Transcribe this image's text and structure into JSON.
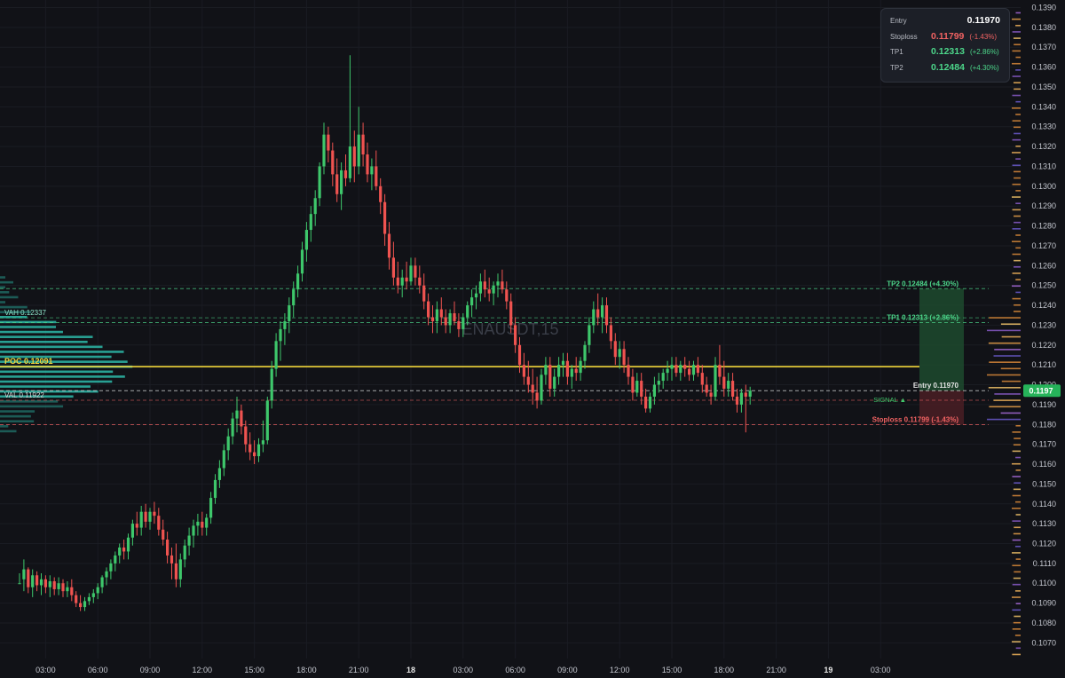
{
  "chart_data": {
    "type": "candlestick",
    "symbol_watermark": "ENAUSDT,15",
    "y_axis": {
      "range": [
        0.1062,
        0.1394
      ],
      "ticks": [
        "0.1070",
        "0.1080",
        "0.1090",
        "0.1100",
        "0.1110",
        "0.1120",
        "0.1130",
        "0.1140",
        "0.1150",
        "0.1160",
        "0.1170",
        "0.1180",
        "0.1190",
        "0.1200",
        "0.1210",
        "0.1220",
        "0.1230",
        "0.1240",
        "0.1250",
        "0.1260",
        "0.1270",
        "0.1280",
        "0.1290",
        "0.1300",
        "0.1310",
        "0.1320",
        "0.1330",
        "0.1340",
        "0.1350",
        "0.1360",
        "0.1370",
        "0.1380",
        "0.1390"
      ],
      "current_price_label": "0.1197"
    },
    "x_axis": {
      "ticks": [
        {
          "label": "03:00",
          "t": 6
        },
        {
          "label": "06:00",
          "t": 18
        },
        {
          "label": "09:00",
          "t": 30
        },
        {
          "label": "12:00",
          "t": 42
        },
        {
          "label": "15:00",
          "t": 54
        },
        {
          "label": "18:00",
          "t": 66
        },
        {
          "label": "21:00",
          "t": 78
        },
        {
          "label": "18",
          "t": 90,
          "bold": true
        },
        {
          "label": "03:00",
          "t": 102
        },
        {
          "label": "06:00",
          "t": 114
        },
        {
          "label": "09:00",
          "t": 126
        },
        {
          "label": "12:00",
          "t": 138
        },
        {
          "label": "15:00",
          "t": 150
        },
        {
          "label": "18:00",
          "t": 162
        },
        {
          "label": "21:00",
          "t": 174
        },
        {
          "label": "19",
          "t": 186,
          "bold": true
        },
        {
          "label": "03:00",
          "t": 198
        }
      ]
    },
    "ohlc": [
      [
        0.11,
        0.1105,
        0.11,
        0.11
      ],
      [
        0.1102,
        0.1112,
        0.1096,
        0.1107
      ],
      [
        0.1107,
        0.1108,
        0.1095,
        0.1098
      ],
      [
        0.1098,
        0.1107,
        0.1093,
        0.1104
      ],
      [
        0.1104,
        0.1106,
        0.1096,
        0.1099
      ],
      [
        0.1099,
        0.1105,
        0.1094,
        0.1102
      ],
      [
        0.1102,
        0.1104,
        0.1095,
        0.1098
      ],
      [
        0.1098,
        0.1104,
        0.1093,
        0.1101
      ],
      [
        0.1101,
        0.1103,
        0.1094,
        0.1097
      ],
      [
        0.1097,
        0.1103,
        0.1094,
        0.11
      ],
      [
        0.11,
        0.1102,
        0.1093,
        0.1096
      ],
      [
        0.1096,
        0.1101,
        0.1093,
        0.1098
      ],
      [
        0.1098,
        0.1102,
        0.1091,
        0.1094
      ],
      [
        0.1094,
        0.1096,
        0.1088,
        0.109
      ],
      [
        0.109,
        0.1094,
        0.1086,
        0.1088
      ],
      [
        0.1088,
        0.1093,
        0.1086,
        0.1091
      ],
      [
        0.1091,
        0.1095,
        0.1089,
        0.1093
      ],
      [
        0.1093,
        0.1097,
        0.109,
        0.1095
      ],
      [
        0.1095,
        0.11,
        0.1092,
        0.1098
      ],
      [
        0.1098,
        0.1104,
        0.1095,
        0.1103
      ],
      [
        0.1103,
        0.1108,
        0.1099,
        0.1106
      ],
      [
        0.1106,
        0.1112,
        0.1102,
        0.111
      ],
      [
        0.111,
        0.1116,
        0.1106,
        0.1114
      ],
      [
        0.1114,
        0.112,
        0.111,
        0.1118
      ],
      [
        0.1118,
        0.1122,
        0.1112,
        0.1116
      ],
      [
        0.1116,
        0.1125,
        0.1112,
        0.1123
      ],
      [
        0.1123,
        0.1132,
        0.1119,
        0.113
      ],
      [
        0.113,
        0.1136,
        0.1124,
        0.1128
      ],
      [
        0.1128,
        0.1139,
        0.1124,
        0.1136
      ],
      [
        0.1136,
        0.114,
        0.1128,
        0.1131
      ],
      [
        0.1131,
        0.1138,
        0.1127,
        0.1136
      ],
      [
        0.1136,
        0.1141,
        0.113,
        0.1134
      ],
      [
        0.1134,
        0.1138,
        0.1124,
        0.1127
      ],
      [
        0.1127,
        0.1132,
        0.1119,
        0.1122
      ],
      [
        0.1122,
        0.1126,
        0.111,
        0.1114
      ],
      [
        0.1114,
        0.1118,
        0.1102,
        0.111
      ],
      [
        0.111,
        0.112,
        0.1098,
        0.1102
      ],
      [
        0.1102,
        0.1115,
        0.1098,
        0.1112
      ],
      [
        0.1112,
        0.1122,
        0.1108,
        0.1119
      ],
      [
        0.1119,
        0.1128,
        0.1114,
        0.1124
      ],
      [
        0.1124,
        0.1132,
        0.1118,
        0.1129
      ],
      [
        0.1129,
        0.1135,
        0.1124,
        0.1131
      ],
      [
        0.1131,
        0.1136,
        0.1124,
        0.1128
      ],
      [
        0.1128,
        0.1135,
        0.1124,
        0.1133
      ],
      [
        0.1133,
        0.1146,
        0.113,
        0.1143
      ],
      [
        0.1143,
        0.1155,
        0.114,
        0.1152
      ],
      [
        0.1152,
        0.1162,
        0.1148,
        0.1158
      ],
      [
        0.1158,
        0.117,
        0.1154,
        0.1167
      ],
      [
        0.1167,
        0.1178,
        0.1162,
        0.1174
      ],
      [
        0.1174,
        0.1186,
        0.117,
        0.1183
      ],
      [
        0.1183,
        0.1194,
        0.1176,
        0.1187
      ],
      [
        0.1187,
        0.119,
        0.1175,
        0.1179
      ],
      [
        0.1179,
        0.1182,
        0.1166,
        0.117
      ],
      [
        0.117,
        0.1176,
        0.1162,
        0.1166
      ],
      [
        0.1166,
        0.1172,
        0.116,
        0.1164
      ],
      [
        0.1164,
        0.1173,
        0.1161,
        0.117
      ],
      [
        0.117,
        0.1182,
        0.1166,
        0.1172
      ],
      [
        0.1172,
        0.1194,
        0.117,
        0.1192
      ],
      [
        0.1192,
        0.1212,
        0.1188,
        0.1208
      ],
      [
        0.1208,
        0.1226,
        0.1204,
        0.1222
      ],
      [
        0.1222,
        0.1232,
        0.1212,
        0.1228
      ],
      [
        0.1228,
        0.1236,
        0.122,
        0.1232
      ],
      [
        0.1232,
        0.1244,
        0.1226,
        0.124
      ],
      [
        0.124,
        0.1252,
        0.1234,
        0.1248
      ],
      [
        0.1248,
        0.126,
        0.1244,
        0.1256
      ],
      [
        0.1256,
        0.1272,
        0.1252,
        0.1268
      ],
      [
        0.1268,
        0.1282,
        0.1262,
        0.1278
      ],
      [
        0.1278,
        0.129,
        0.1272,
        0.1286
      ],
      [
        0.1286,
        0.1298,
        0.128,
        0.1294
      ],
      [
        0.1294,
        0.1312,
        0.129,
        0.131
      ],
      [
        0.131,
        0.1332,
        0.1306,
        0.1326
      ],
      [
        0.1326,
        0.133,
        0.1312,
        0.1318
      ],
      [
        0.1318,
        0.1322,
        0.13,
        0.1306
      ],
      [
        0.1306,
        0.1314,
        0.1292,
        0.1296
      ],
      [
        0.1296,
        0.1312,
        0.1288,
        0.1308
      ],
      [
        0.1308,
        0.1316,
        0.13,
        0.1304
      ],
      [
        0.1304,
        0.1366,
        0.1302,
        0.132
      ],
      [
        0.132,
        0.1328,
        0.1302,
        0.131
      ],
      [
        0.131,
        0.134,
        0.1306,
        0.1326
      ],
      [
        0.1326,
        0.1332,
        0.131,
        0.1316
      ],
      [
        0.1316,
        0.1322,
        0.1302,
        0.1306
      ],
      [
        0.1306,
        0.1314,
        0.1298,
        0.131
      ],
      [
        0.131,
        0.1318,
        0.1298,
        0.13
      ],
      [
        0.13,
        0.1304,
        0.1286,
        0.1292
      ],
      [
        0.1292,
        0.1296,
        0.127,
        0.1276
      ],
      [
        0.1276,
        0.1282,
        0.1258,
        0.1264
      ],
      [
        0.1264,
        0.1272,
        0.125,
        0.1254
      ],
      [
        0.1254,
        0.1262,
        0.1246,
        0.125
      ],
      [
        0.125,
        0.1258,
        0.1244,
        0.1254
      ],
      [
        0.1254,
        0.1262,
        0.1248,
        0.1252
      ],
      [
        0.1252,
        0.1264,
        0.125,
        0.126
      ],
      [
        0.126,
        0.1264,
        0.125,
        0.1254
      ],
      [
        0.1254,
        0.126,
        0.1246,
        0.125
      ],
      [
        0.125,
        0.1256,
        0.1238,
        0.1242
      ],
      [
        0.1242,
        0.1246,
        0.123,
        0.1234
      ],
      [
        0.1234,
        0.124,
        0.1226,
        0.1232
      ],
      [
        0.1232,
        0.1242,
        0.1226,
        0.1238
      ],
      [
        0.1238,
        0.1244,
        0.123,
        0.1234
      ],
      [
        0.1234,
        0.1238,
        0.1226,
        0.123
      ],
      [
        0.123,
        0.1238,
        0.1226,
        0.1236
      ],
      [
        0.1236,
        0.1242,
        0.123,
        0.1232
      ],
      [
        0.1232,
        0.1236,
        0.1224,
        0.1228
      ],
      [
        0.1228,
        0.1236,
        0.1224,
        0.1234
      ],
      [
        0.1234,
        0.1242,
        0.123,
        0.124
      ],
      [
        0.124,
        0.1248,
        0.1234,
        0.1244
      ],
      [
        0.1244,
        0.125,
        0.1238,
        0.1246
      ],
      [
        0.1246,
        0.1256,
        0.1242,
        0.1252
      ],
      [
        0.1252,
        0.1258,
        0.1244,
        0.1248
      ],
      [
        0.1248,
        0.1254,
        0.1242,
        0.1246
      ],
      [
        0.1246,
        0.1252,
        0.124,
        0.125
      ],
      [
        0.125,
        0.1256,
        0.1244,
        0.1252
      ],
      [
        0.1252,
        0.1258,
        0.1246,
        0.1248
      ],
      [
        0.1248,
        0.1252,
        0.1238,
        0.1242
      ],
      [
        0.1242,
        0.1246,
        0.1226,
        0.123
      ],
      [
        0.123,
        0.1234,
        0.1216,
        0.122
      ],
      [
        0.122,
        0.1224,
        0.1206,
        0.121
      ],
      [
        0.121,
        0.1216,
        0.12,
        0.1204
      ],
      [
        0.1204,
        0.1212,
        0.1196,
        0.12
      ],
      [
        0.12,
        0.1208,
        0.119,
        0.1196
      ],
      [
        0.1196,
        0.1204,
        0.1188,
        0.1192
      ],
      [
        0.1192,
        0.1208,
        0.119,
        0.1205
      ],
      [
        0.1205,
        0.1214,
        0.12,
        0.121
      ],
      [
        0.121,
        0.1214,
        0.1194,
        0.1198
      ],
      [
        0.1198,
        0.1208,
        0.1194,
        0.1204
      ],
      [
        0.1204,
        0.1214,
        0.12,
        0.121
      ],
      [
        0.121,
        0.1216,
        0.1204,
        0.1212
      ],
      [
        0.1212,
        0.1216,
        0.12,
        0.1204
      ],
      [
        0.1204,
        0.121,
        0.1198,
        0.1208
      ],
      [
        0.1208,
        0.1214,
        0.1202,
        0.1206
      ],
      [
        0.1206,
        0.1214,
        0.1202,
        0.1212
      ],
      [
        0.1212,
        0.1222,
        0.1208,
        0.122
      ],
      [
        0.122,
        0.1234,
        0.1216,
        0.123
      ],
      [
        0.123,
        0.1242,
        0.1226,
        0.1238
      ],
      [
        0.1238,
        0.1246,
        0.123,
        0.1234
      ],
      [
        0.1234,
        0.1244,
        0.1226,
        0.124
      ],
      [
        0.124,
        0.1244,
        0.1226,
        0.123
      ],
      [
        0.123,
        0.1234,
        0.1218,
        0.1222
      ],
      [
        0.1222,
        0.1226,
        0.121,
        0.1214
      ],
      [
        0.1214,
        0.1222,
        0.1208,
        0.1218
      ],
      [
        0.1218,
        0.1222,
        0.1206,
        0.121
      ],
      [
        0.121,
        0.1214,
        0.12,
        0.1204
      ],
      [
        0.1204,
        0.1208,
        0.1192,
        0.1196
      ],
      [
        0.1196,
        0.1206,
        0.1194,
        0.1202
      ],
      [
        0.1202,
        0.1206,
        0.119,
        0.1194
      ],
      [
        0.1194,
        0.1198,
        0.1186,
        0.1188
      ],
      [
        0.1188,
        0.1196,
        0.1186,
        0.1194
      ],
      [
        0.1194,
        0.1204,
        0.119,
        0.12
      ],
      [
        0.12,
        0.1206,
        0.1196,
        0.1202
      ],
      [
        0.1202,
        0.1208,
        0.1198,
        0.1206
      ],
      [
        0.1206,
        0.1212,
        0.1202,
        0.1208
      ],
      [
        0.1208,
        0.1214,
        0.1202,
        0.121
      ],
      [
        0.121,
        0.1214,
        0.1204,
        0.1206
      ],
      [
        0.1206,
        0.1212,
        0.1202,
        0.121
      ],
      [
        0.121,
        0.1214,
        0.1204,
        0.1208
      ],
      [
        0.1208,
        0.1212,
        0.1202,
        0.1205
      ],
      [
        0.1205,
        0.1212,
        0.1202,
        0.121
      ],
      [
        0.121,
        0.1214,
        0.1204,
        0.1206
      ],
      [
        0.1206,
        0.121,
        0.1196,
        0.12
      ],
      [
        0.12,
        0.1204,
        0.1194,
        0.1196
      ],
      [
        0.1196,
        0.12,
        0.119,
        0.1194
      ],
      [
        0.1194,
        0.1214,
        0.1192,
        0.121
      ],
      [
        0.121,
        0.122,
        0.12,
        0.1204
      ],
      [
        0.1204,
        0.1212,
        0.1194,
        0.1198
      ],
      [
        0.1198,
        0.1206,
        0.1194,
        0.1202
      ],
      [
        0.1202,
        0.1206,
        0.1192,
        0.1194
      ],
      [
        0.1194,
        0.1198,
        0.1186,
        0.119
      ],
      [
        0.119,
        0.1198,
        0.1186,
        0.1196
      ],
      [
        0.1196,
        0.12,
        0.1176,
        0.1194
      ],
      [
        0.1194,
        0.1199,
        0.119,
        0.1197
      ]
    ],
    "volume_profile": {
      "levels": [
        {
          "label": "VAH",
          "price": 0.12337,
          "text": "VAH  0.12337"
        },
        {
          "label": "POC",
          "price": 0.12091,
          "text": "POC  0.12091"
        },
        {
          "label": "VAL",
          "price": 0.11922,
          "text": "VAL  0.11922"
        }
      ]
    },
    "trade_levels": [
      {
        "name": "TP2",
        "price": 0.12484,
        "text": "TP2 0.12484 (+4.30%)",
        "color": "#4cd68a"
      },
      {
        "name": "TP1",
        "price": 0.12313,
        "text": "TP1 0.12313 (+2.86%)",
        "color": "#4cd68a"
      },
      {
        "name": "Entry",
        "price": 0.1197,
        "text": "Entry 0.11970",
        "color": "#e6e6e6"
      },
      {
        "name": "Stoploss",
        "price": 0.11799,
        "text": "Stoploss 0.11799 (-1.43%)",
        "color": "#f06262"
      }
    ],
    "signal_label": "SIGNAL ▲"
  },
  "info_box": {
    "entry_label": "Entry",
    "entry_value": "0.11970",
    "stoploss_label": "Stoploss",
    "stoploss_value": "0.11799",
    "stoploss_pct": "(-1.43%)",
    "tp1_label": "TP1",
    "tp1_value": "0.12313",
    "tp1_pct": "(+2.86%)",
    "tp2_label": "TP2",
    "tp2_value": "0.12484",
    "tp2_pct": "(+4.30%)"
  },
  "colors": {
    "up": "#26a69a",
    "up_bright": "#3ec76b",
    "down": "#ef5350",
    "poc_line": "#f0d43a",
    "profile": "#2bb3a3",
    "background": "#111217",
    "axis_text": "#c4c7cf"
  }
}
